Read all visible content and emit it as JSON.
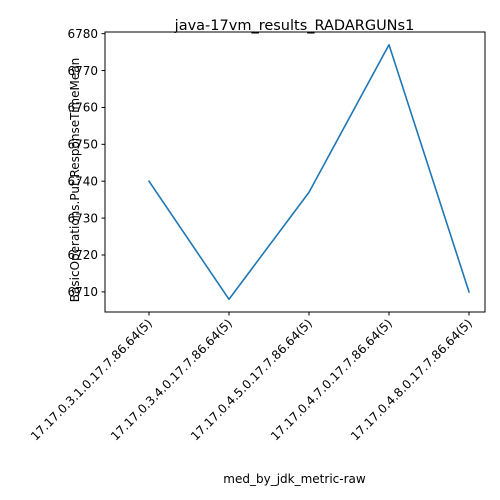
{
  "chart_data": {
    "type": "line",
    "title": "java-17vm_results_RADARGUNs1",
    "xlabel": "med_by_jdk_metric-raw",
    "ylabel": "BasicOperations.Put.ResponseTimeMean",
    "categories": [
      "17.17.0.3.1.0.17.7.86.64(5)",
      "17.17.0.3.4.0.17.7.86.64(5)",
      "17.17.0.4.5.0.17.7.86.64(5)",
      "17.17.0.4.7.0.17.7.86.64(5)",
      "17.17.0.4.8.0.17.7.86.64(5)"
    ],
    "series": [
      {
        "values": [
          6740,
          6708,
          6737,
          6777,
          6710
        ],
        "color": "#1f77b4"
      }
    ],
    "ylim": [
      6704.55,
      6780.45
    ],
    "yticks": [
      6710,
      6720,
      6730,
      6740,
      6750,
      6760,
      6770,
      6780
    ],
    "grid": false,
    "legend": false
  }
}
